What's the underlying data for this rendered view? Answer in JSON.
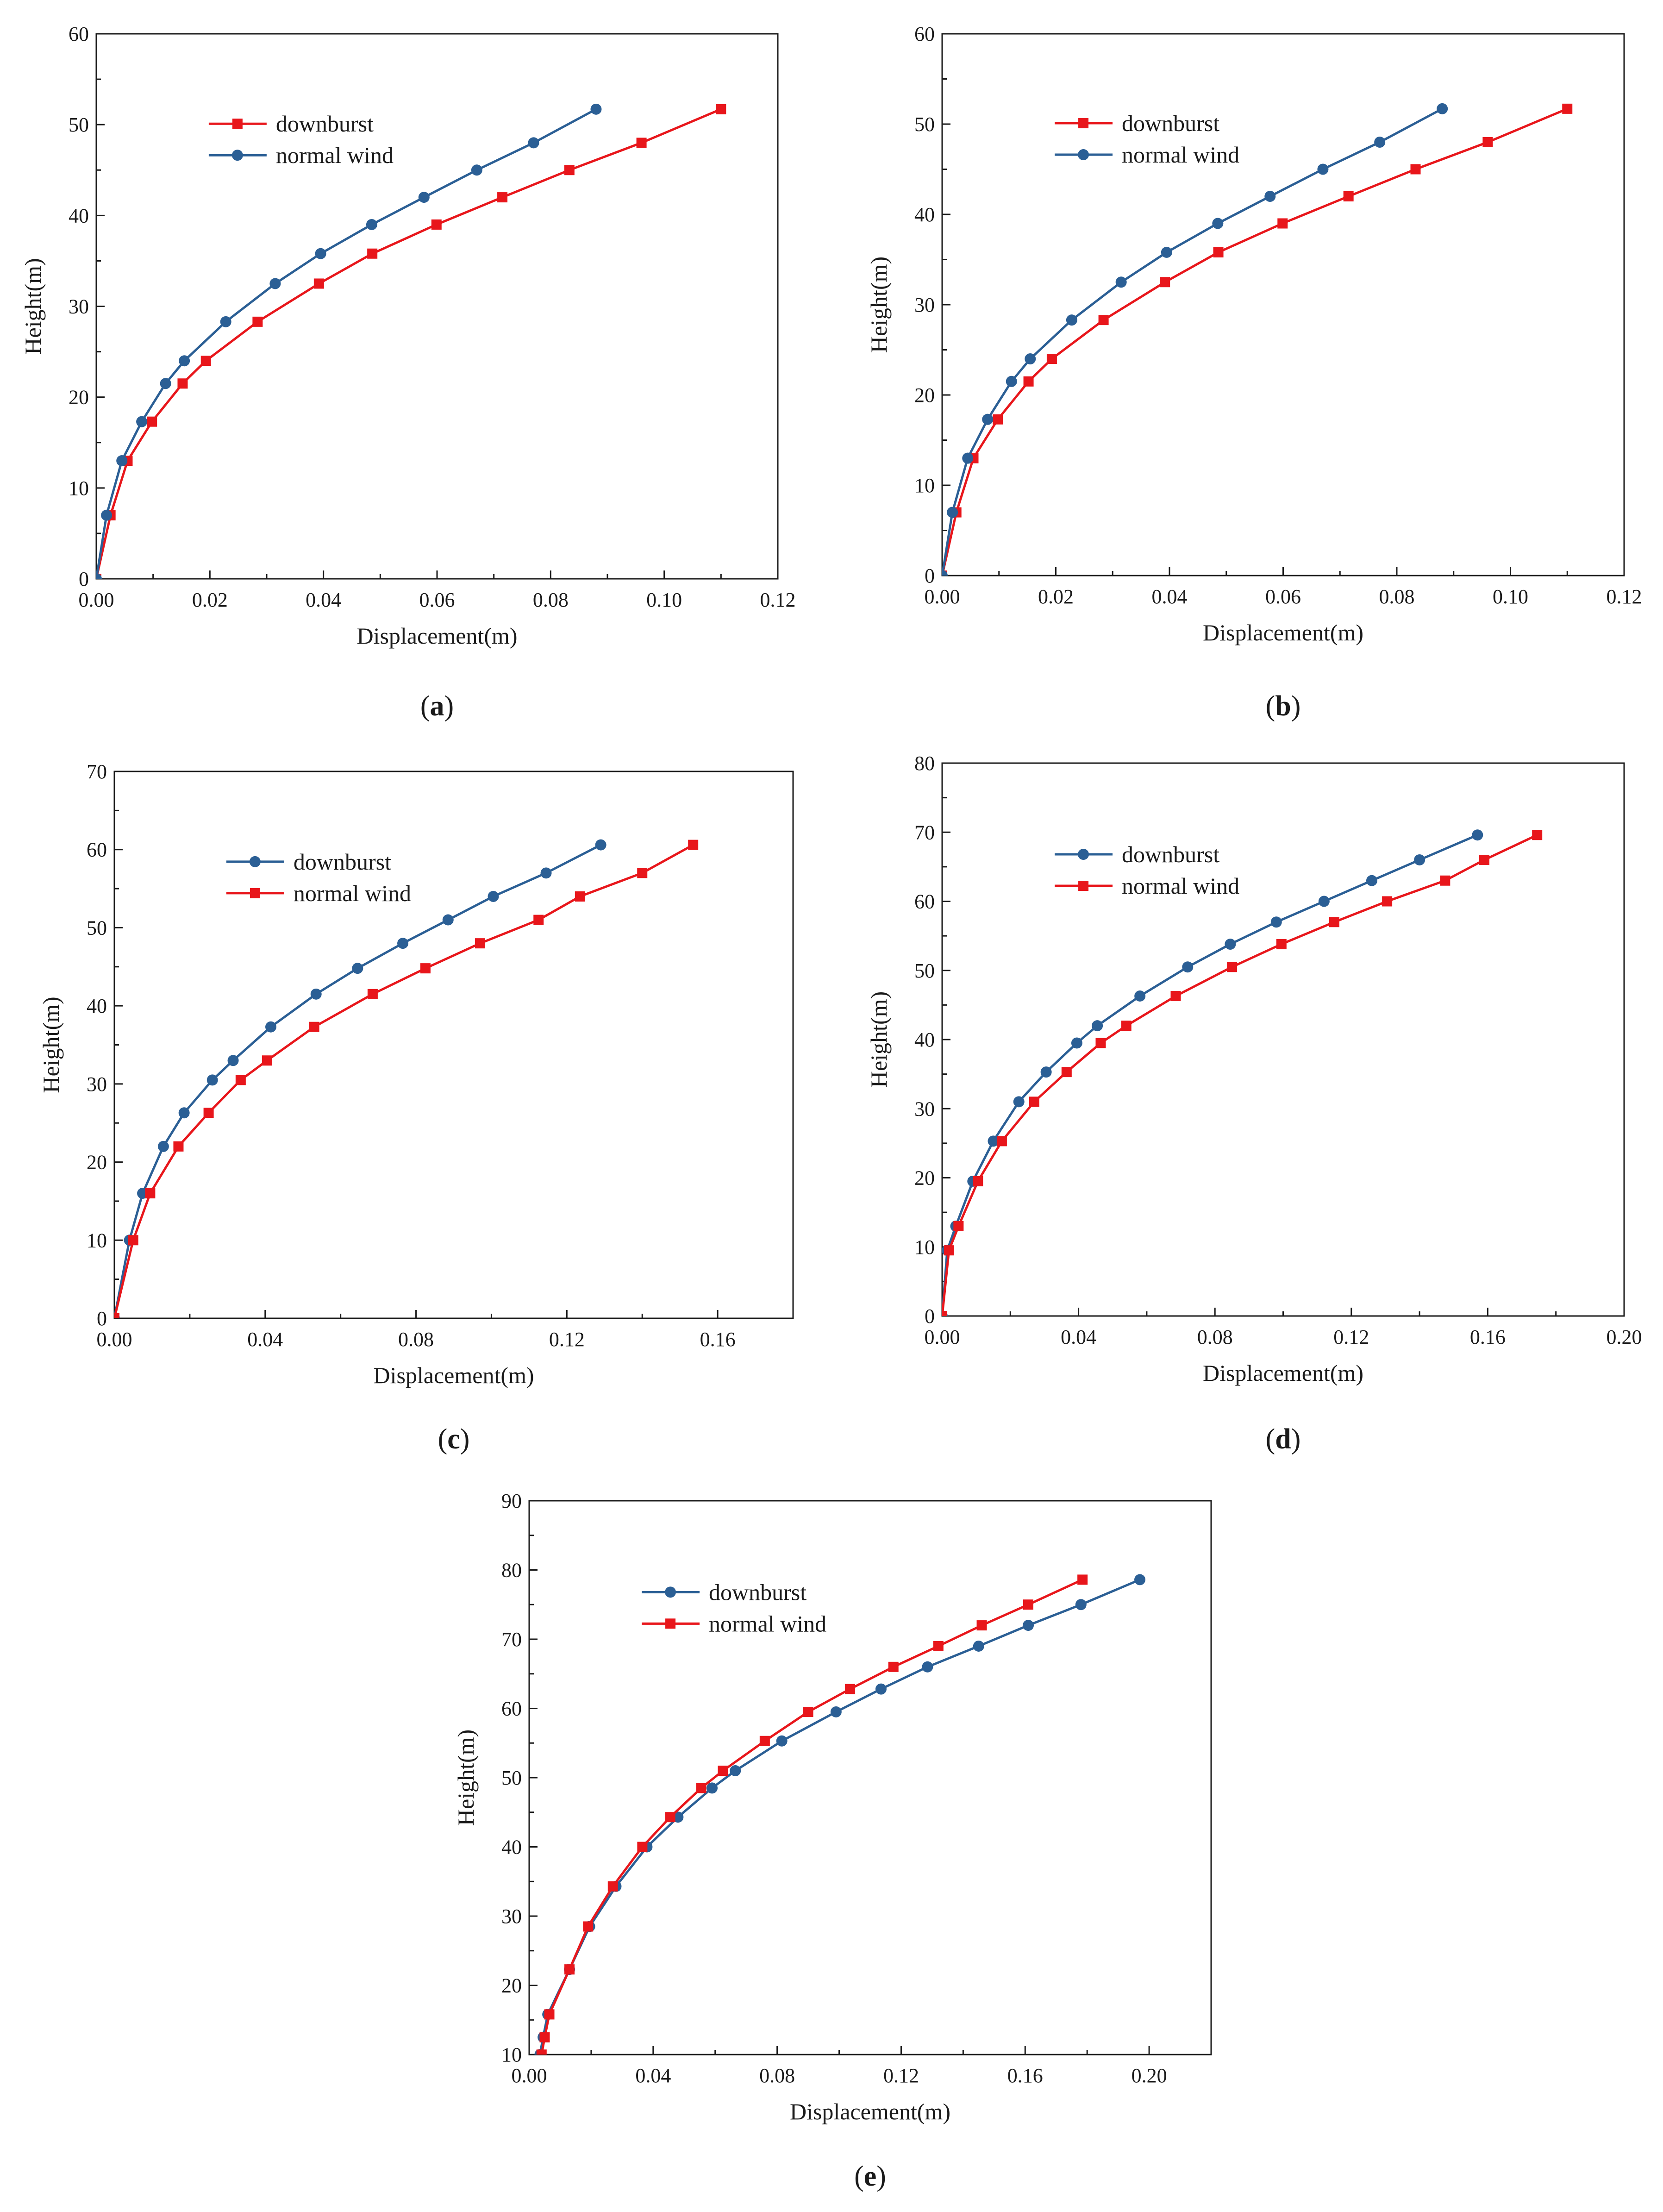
{
  "colors": {
    "red": "#e8161b",
    "blue": "#2b5f95",
    "axis": "#1a1a1a"
  },
  "chart_data": [
    {
      "type": "line",
      "panel_label": "a",
      "xlabel": "Displacement(m)",
      "ylabel": "Height(m)",
      "xlim": [
        0,
        0.12
      ],
      "ylim": [
        0,
        60
      ],
      "xticks": [
        0.0,
        0.02,
        0.04,
        0.06,
        0.08,
        0.1,
        0.12
      ],
      "xtick_labels": [
        "0.00",
        "0.02",
        "0.04",
        "0.06",
        "0.08",
        "0.10",
        "0.12"
      ],
      "yticks": [
        0,
        10,
        20,
        30,
        40,
        50,
        60
      ],
      "ytick_labels": [
        "0",
        "10",
        "20",
        "30",
        "40",
        "50",
        "60"
      ],
      "legend_position": "upper-left",
      "series": [
        {
          "name": "downburst",
          "color": "red",
          "marker": "square",
          "x": [
            0,
            0.0025,
            0.0055,
            0.0098,
            0.0152,
            0.0193,
            0.0284,
            0.0392,
            0.0486,
            0.0599,
            0.0715,
            0.0833,
            0.096,
            0.11
          ],
          "y": [
            0,
            7,
            13,
            17.3,
            21.5,
            24,
            28.3,
            32.5,
            35.8,
            39,
            42,
            45,
            48,
            51.7
          ]
        },
        {
          "name": "normal wind",
          "color": "blue",
          "marker": "circle",
          "x": [
            0,
            0.0018,
            0.0045,
            0.008,
            0.0122,
            0.0155,
            0.0228,
            0.0315,
            0.0395,
            0.0485,
            0.0577,
            0.067,
            0.077,
            0.088
          ],
          "y": [
            0,
            7,
            13,
            17.3,
            21.5,
            24,
            28.3,
            32.5,
            35.8,
            39,
            42,
            45,
            48,
            51.7
          ]
        }
      ]
    },
    {
      "type": "line",
      "panel_label": "b",
      "xlabel": "Displacement(m)",
      "ylabel": "Height(m)",
      "xlim": [
        0,
        0.12
      ],
      "ylim": [
        0,
        60
      ],
      "xticks": [
        0.0,
        0.02,
        0.04,
        0.06,
        0.08,
        0.1,
        0.12
      ],
      "xtick_labels": [
        "0.00",
        "0.02",
        "0.04",
        "0.06",
        "0.08",
        "0.10",
        "0.12"
      ],
      "yticks": [
        0,
        10,
        20,
        30,
        40,
        50,
        60
      ],
      "ytick_labels": [
        "0",
        "10",
        "20",
        "30",
        "40",
        "50",
        "60"
      ],
      "legend_position": "upper-left",
      "series": [
        {
          "name": "downburst",
          "color": "red",
          "marker": "square",
          "x": [
            0,
            0.0025,
            0.0055,
            0.0098,
            0.0152,
            0.0193,
            0.0284,
            0.0392,
            0.0486,
            0.0599,
            0.0715,
            0.0833,
            0.096,
            0.11
          ],
          "y": [
            0,
            7,
            13,
            17.3,
            21.5,
            24,
            28.3,
            32.5,
            35.8,
            39,
            42,
            45,
            48,
            51.7
          ]
        },
        {
          "name": "normal wind",
          "color": "blue",
          "marker": "circle",
          "x": [
            0,
            0.0018,
            0.0045,
            0.008,
            0.0122,
            0.0155,
            0.0228,
            0.0315,
            0.0395,
            0.0485,
            0.0577,
            0.067,
            0.077,
            0.088
          ],
          "y": [
            0,
            7,
            13,
            17.3,
            21.5,
            24,
            28.3,
            32.5,
            35.8,
            39,
            42,
            45,
            48,
            51.7
          ]
        }
      ]
    },
    {
      "type": "line",
      "panel_label": "c",
      "xlabel": "Displacement(m)",
      "ylabel": "Height(m)",
      "xlim": [
        0,
        0.18
      ],
      "ylim": [
        0,
        70
      ],
      "xticks": [
        0.0,
        0.04,
        0.08,
        0.12,
        0.16
      ],
      "xtick_labels": [
        "0.00",
        "0.04",
        "0.08",
        "0.12",
        "0.16"
      ],
      "yticks": [
        0,
        10,
        20,
        30,
        40,
        50,
        60,
        70
      ],
      "ytick_labels": [
        "0",
        "10",
        "20",
        "30",
        "40",
        "50",
        "60",
        "70"
      ],
      "legend_position": "upper-left",
      "series": [
        {
          "name": "downburst",
          "color": "blue",
          "marker": "circle",
          "x": [
            0,
            0.004,
            0.0075,
            0.013,
            0.0185,
            0.026,
            0.0315,
            0.0415,
            0.0535,
            0.0645,
            0.0765,
            0.0885,
            0.1005,
            0.1145,
            0.129
          ],
          "y": [
            0,
            10,
            16,
            22,
            26.3,
            30.5,
            33,
            37.3,
            41.5,
            44.8,
            48,
            51,
            54,
            57,
            60.6
          ]
        },
        {
          "name": "normal wind",
          "color": "red",
          "marker": "square",
          "x": [
            0,
            0.005,
            0.0095,
            0.017,
            0.025,
            0.0335,
            0.0405,
            0.053,
            0.0685,
            0.0825,
            0.097,
            0.1125,
            0.1235,
            0.14,
            0.1535
          ],
          "y": [
            0,
            10,
            16,
            22,
            26.3,
            30.5,
            33,
            37.3,
            41.5,
            44.8,
            48,
            51,
            54,
            57,
            60.6
          ]
        }
      ]
    },
    {
      "type": "line",
      "panel_label": "d",
      "xlabel": "Displacement(m)",
      "ylabel": "Height(m)",
      "xlim": [
        0,
        0.2
      ],
      "ylim": [
        0,
        80
      ],
      "xticks": [
        0.0,
        0.04,
        0.08,
        0.12,
        0.16,
        0.2
      ],
      "xtick_labels": [
        "0.00",
        "0.04",
        "0.08",
        "0.12",
        "0.16",
        "0.20"
      ],
      "yticks": [
        0,
        10,
        20,
        30,
        40,
        50,
        60,
        70,
        80
      ],
      "ytick_labels": [
        "0",
        "10",
        "20",
        "30",
        "40",
        "50",
        "60",
        "70",
        "80"
      ],
      "legend_position": "upper-left",
      "series": [
        {
          "name": "downburst",
          "color": "blue",
          "marker": "circle",
          "x": [
            0,
            0.0015,
            0.004,
            0.009,
            0.015,
            0.0225,
            0.0305,
            0.0395,
            0.0455,
            0.058,
            0.072,
            0.0845,
            0.098,
            0.112,
            0.126,
            0.14,
            0.157
          ],
          "y": [
            0,
            9.5,
            13,
            19.5,
            25.3,
            31,
            35.3,
            39.5,
            42,
            46.3,
            50.5,
            53.8,
            57,
            60,
            63,
            66,
            69.6
          ]
        },
        {
          "name": "normal wind",
          "color": "red",
          "marker": "square",
          "x": [
            0,
            0.002,
            0.0048,
            0.0105,
            0.0175,
            0.027,
            0.0365,
            0.0465,
            0.054,
            0.0685,
            0.085,
            0.0995,
            0.115,
            0.1305,
            0.1475,
            0.159,
            0.1745
          ],
          "y": [
            0,
            9.5,
            13,
            19.5,
            25.3,
            31,
            35.3,
            39.5,
            42,
            46.3,
            50.5,
            53.8,
            57,
            60,
            63,
            66,
            69.6
          ]
        }
      ]
    },
    {
      "type": "line",
      "panel_label": "e",
      "xlabel": "Displacement(m)",
      "ylabel": "Height(m)",
      "xlim": [
        0,
        0.22
      ],
      "ylim": [
        10,
        90
      ],
      "xticks": [
        0.0,
        0.04,
        0.08,
        0.12,
        0.16,
        0.2
      ],
      "xtick_labels": [
        "0.00",
        "0.04",
        "0.08",
        "0.12",
        "0.16",
        "0.20"
      ],
      "yticks": [
        10,
        20,
        30,
        40,
        50,
        60,
        70,
        80,
        90
      ],
      "ytick_labels": [
        "10",
        "20",
        "30",
        "40",
        "50",
        "60",
        "70",
        "80",
        "90"
      ],
      "legend_position": "upper-left",
      "series": [
        {
          "name": "downburst",
          "color": "blue",
          "marker": "circle",
          "x": [
            0.0035,
            0.0045,
            0.006,
            0.013,
            0.0195,
            0.028,
            0.038,
            0.048,
            0.059,
            0.0665,
            0.0815,
            0.099,
            0.1135,
            0.1285,
            0.145,
            0.161,
            0.178,
            0.197
          ],
          "y": [
            10,
            12.5,
            15.8,
            22.3,
            28.5,
            34.3,
            40,
            44.3,
            48.5,
            51,
            55.3,
            59.5,
            62.8,
            66,
            69,
            72,
            75,
            78.6
          ]
        },
        {
          "name": "normal wind",
          "color": "red",
          "marker": "square",
          "x": [
            0.004,
            0.005,
            0.0065,
            0.013,
            0.019,
            0.027,
            0.0365,
            0.0455,
            0.0555,
            0.0625,
            0.076,
            0.09,
            0.1035,
            0.1175,
            0.132,
            0.146,
            0.161,
            0.1785
          ],
          "y": [
            10,
            12.5,
            15.8,
            22.3,
            28.5,
            34.3,
            40,
            44.3,
            48.5,
            51,
            55.3,
            59.5,
            62.8,
            66,
            69,
            72,
            75,
            78.6
          ]
        }
      ]
    }
  ]
}
